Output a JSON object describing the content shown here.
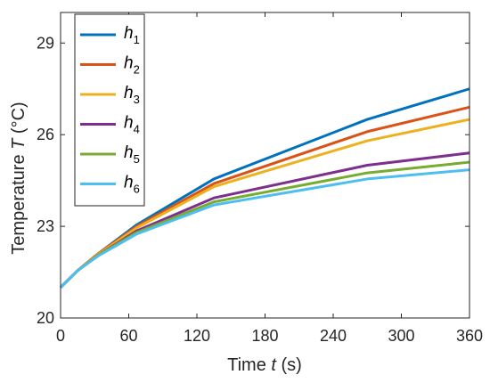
{
  "chart_data": {
    "type": "line",
    "xlabel": {
      "text": "Time ",
      "var": "t",
      "unit": " (s)"
    },
    "ylabel": {
      "text": "Temperature ",
      "var": "T",
      "unit": " (°C)"
    },
    "xlim": [
      0,
      360
    ],
    "ylim": [
      20,
      30
    ],
    "x_ticks": [
      0,
      60,
      120,
      180,
      240,
      300,
      360
    ],
    "y_ticks": [
      20,
      23,
      26,
      29
    ],
    "x_tick_labels": [
      "0",
      "60",
      "120",
      "180",
      "240",
      "300",
      "360"
    ],
    "y_tick_labels": [
      "20",
      "23",
      "26",
      "29"
    ],
    "grid": false,
    "legend_position": "top-left",
    "series": [
      {
        "name": "h",
        "sub": "1",
        "color": "#0072BD",
        "x": [
          0,
          15,
          33,
          67,
          135,
          270,
          360
        ],
        "y": [
          21.0,
          21.55,
          22.1,
          23.05,
          24.55,
          26.5,
          27.5
        ]
      },
      {
        "name": "h",
        "sub": "2",
        "color": "#D95319",
        "x": [
          0,
          15,
          33,
          67,
          135,
          270,
          360
        ],
        "y": [
          21.0,
          21.55,
          22.1,
          23.0,
          24.4,
          26.1,
          26.9
        ]
      },
      {
        "name": "h",
        "sub": "3",
        "color": "#EDB120",
        "x": [
          0,
          15,
          33,
          67,
          135,
          270,
          360
        ],
        "y": [
          21.0,
          21.55,
          22.08,
          22.95,
          24.3,
          25.8,
          26.5
        ]
      },
      {
        "name": "h",
        "sub": "4",
        "color": "#7E2F8E",
        "x": [
          0,
          15,
          33,
          67,
          135,
          270,
          360
        ],
        "y": [
          21.0,
          21.55,
          22.05,
          22.85,
          23.93,
          25.0,
          25.4
        ]
      },
      {
        "name": "h",
        "sub": "5",
        "color": "#77AC30",
        "x": [
          0,
          15,
          33,
          67,
          135,
          270,
          360
        ],
        "y": [
          21.0,
          21.55,
          22.05,
          22.8,
          23.8,
          24.75,
          25.1
        ]
      },
      {
        "name": "h",
        "sub": "6",
        "color": "#4DBEEE",
        "x": [
          0,
          15,
          33,
          67,
          135,
          270,
          360
        ],
        "y": [
          21.0,
          21.55,
          22.03,
          22.75,
          23.7,
          24.55,
          24.85
        ]
      }
    ]
  }
}
